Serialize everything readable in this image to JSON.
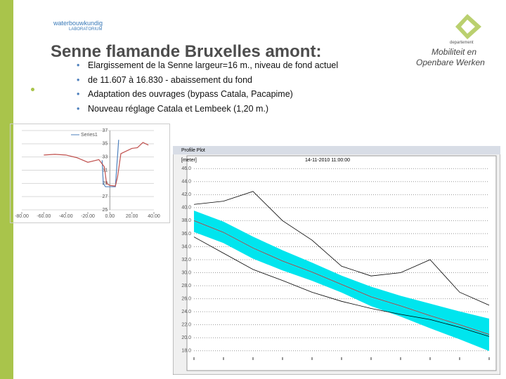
{
  "header": {
    "logo_left": "waterbouwkundig",
    "logo_left_sub": "LABORATORIUM",
    "logo_right_small": "departement",
    "logo_right_line1": "Mobiliteit en",
    "logo_right_line2": "Openbare Werken",
    "title": "Senne flamande Bruxelles amont:"
  },
  "bullets": [
    "Elargissement de la Senne largeur=16 m., niveau de fond actuel",
    "de 11.607 à 16.830  - abaissement du fond",
    "Adaptation des ouvrages (bypass Catala, Pacapime)",
    "Nouveau réglage Catala et Lembeek (1,20 m.)"
  ],
  "chart_data": [
    {
      "type": "line",
      "legend": "top-left",
      "series": [
        {
          "name": "Series1",
          "color": "#4f81bd",
          "x": [
            -7,
            -6,
            -4,
            5,
            8
          ],
          "values": [
            32.5,
            29,
            28.5,
            28.5,
            35.6
          ]
        },
        {
          "color": "#c0504d",
          "x": [
            -60,
            -50,
            -40,
            -30,
            -20,
            -10,
            -5,
            -3,
            0,
            5,
            7,
            10,
            20,
            25,
            30,
            35
          ],
          "values": [
            33.3,
            33.4,
            33.3,
            32.9,
            32.2,
            32.6,
            31.5,
            29,
            28.7,
            28.6,
            30,
            33.5,
            34.3,
            34.4,
            35.2,
            34.8
          ]
        }
      ],
      "xlim": [
        -80,
        40
      ],
      "xticks": [
        {
          "value": -80,
          "label": "-80.00"
        },
        {
          "value": -60,
          "label": "-60.00"
        },
        {
          "value": -40,
          "label": "-40.00"
        },
        {
          "value": -20,
          "label": "-20.00"
        },
        {
          "value": 0,
          "label": "0.00"
        },
        {
          "value": 20,
          "label": "20.00"
        },
        {
          "value": 40,
          "label": "40.00"
        }
      ],
      "ylim": [
        25,
        37
      ],
      "yticks": [
        25,
        27,
        29,
        31,
        33,
        35,
        37
      ],
      "grid": true
    },
    {
      "type": "line",
      "window_title": "Profile Plot",
      "title": "14-11-2010 11:00:00",
      "y_label": "[meter]",
      "categories": [
        null,
        null,
        null,
        null,
        null,
        null,
        null,
        null,
        null,
        null,
        null
      ],
      "series": [
        {
          "color": "#00e5ee",
          "values": [
            39.5,
            37.8,
            35.5,
            33.4,
            31.5,
            29.5,
            27.8,
            26.4,
            25.2,
            24,
            22.9
          ]
        },
        {
          "color": "#00e5ee",
          "values": [
            36.3,
            34.6,
            32.2,
            30.4,
            28.8,
            27,
            24.9,
            23.3,
            21.5,
            19.8,
            18
          ]
        },
        {
          "color": "#d03030",
          "values": [
            38,
            36.2,
            33.8,
            31.8,
            30.1,
            28.2,
            26.3,
            24.9,
            23.4,
            22,
            20.5
          ]
        },
        {
          "color": "#000000",
          "values": [
            35.5,
            33,
            30.5,
            28.8,
            27,
            25.6,
            24.5,
            23.6,
            22.8,
            21.6,
            20.2
          ]
        },
        {
          "color": "#000000",
          "values": [
            40.5,
            41,
            42.5,
            38,
            35,
            31,
            29.5,
            30,
            32,
            27,
            25
          ]
        }
      ],
      "ylim": [
        17,
        47
      ],
      "yticks": [
        {
          "value": 18,
          "label": "18.0"
        },
        {
          "value": 20,
          "label": "20.0"
        },
        {
          "value": 22,
          "label": "22.0"
        },
        {
          "value": 24,
          "label": "24.0"
        },
        {
          "value": 26,
          "label": "26.0"
        },
        {
          "value": 28,
          "label": "28.0"
        },
        {
          "value": 30,
          "label": "30.0"
        },
        {
          "value": 32,
          "label": "32.0"
        },
        {
          "value": 34,
          "label": "34.0"
        },
        {
          "value": 36,
          "label": "36.0"
        },
        {
          "value": 38,
          "label": "38.0"
        },
        {
          "value": 40,
          "label": "40.0"
        },
        {
          "value": 42,
          "label": "42.0"
        },
        {
          "value": 44,
          "label": "44.0"
        },
        {
          "value": 46,
          "label": "46.0"
        }
      ],
      "grid": true,
      "band": [
        0,
        1
      ]
    }
  ]
}
